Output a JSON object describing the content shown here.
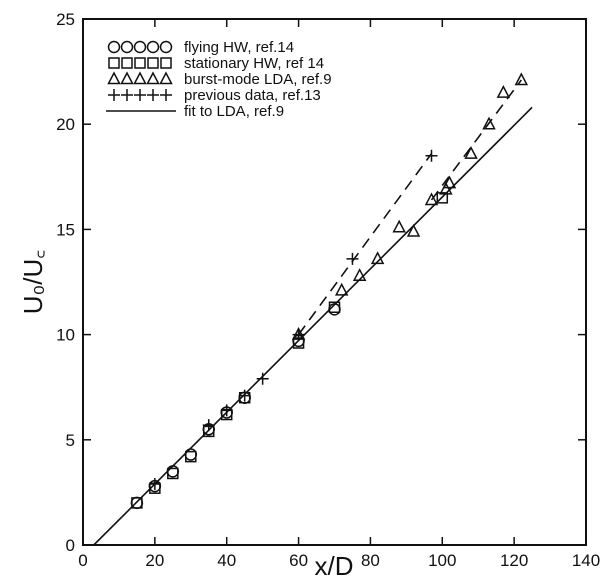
{
  "chart_data": {
    "type": "scatter",
    "xlabel": "x/D",
    "ylabel": "U₀/U꜀",
    "xlim": [
      0,
      140
    ],
    "ylim": [
      0,
      25
    ],
    "xticks": [
      0,
      20,
      40,
      60,
      80,
      100,
      120,
      140
    ],
    "yticks": [
      0,
      5,
      10,
      15,
      20,
      25
    ],
    "grid": false,
    "legend_position": "top-left",
    "series": [
      {
        "name": "flying HW, ref.14",
        "marker": "circle",
        "points": [
          [
            15,
            2.0
          ],
          [
            20,
            2.8
          ],
          [
            25,
            3.5
          ],
          [
            30,
            4.3
          ],
          [
            35,
            5.5
          ],
          [
            40,
            6.3
          ],
          [
            45,
            7.0
          ],
          [
            60,
            9.7
          ],
          [
            70,
            11.2
          ]
        ]
      },
      {
        "name": "stationary HW, ref 14",
        "marker": "square",
        "points": [
          [
            15,
            2.0
          ],
          [
            20,
            2.7
          ],
          [
            25,
            3.4
          ],
          [
            30,
            4.2
          ],
          [
            35,
            5.4
          ],
          [
            40,
            6.2
          ],
          [
            45,
            7.0
          ],
          [
            60,
            9.6
          ],
          [
            70,
            11.3
          ],
          [
            100,
            16.5
          ]
        ]
      },
      {
        "name": "burst-mode LDA, ref.9",
        "marker": "triangle",
        "points": [
          [
            60,
            10.0
          ],
          [
            72,
            12.1
          ],
          [
            77,
            12.8
          ],
          [
            82,
            13.6
          ],
          [
            88,
            15.1
          ],
          [
            92,
            14.9
          ],
          [
            97,
            16.4
          ],
          [
            101,
            16.9
          ],
          [
            102,
            17.2
          ],
          [
            108,
            18.6
          ],
          [
            113,
            20.0
          ],
          [
            117,
            21.5
          ],
          [
            122,
            22.1
          ]
        ]
      },
      {
        "name": "previous data, ref.13",
        "marker": "plus",
        "points": [
          [
            20,
            2.9
          ],
          [
            35,
            5.7
          ],
          [
            40,
            6.4
          ],
          [
            45,
            7.1
          ],
          [
            50,
            7.9
          ],
          [
            60,
            10.0
          ],
          [
            75,
            13.6
          ],
          [
            97,
            18.5
          ]
        ]
      },
      {
        "name": "fit to LDA, ref.9",
        "marker": "line-solid",
        "line": [
          [
            3,
            0
          ],
          [
            125,
            20.8
          ]
        ]
      }
    ],
    "dashed_lines": [
      [
        [
          60,
          10.0
        ],
        [
          97,
          18.6
        ]
      ],
      [
        [
          97,
          16.4
        ],
        [
          122,
          22.1
        ]
      ]
    ]
  }
}
